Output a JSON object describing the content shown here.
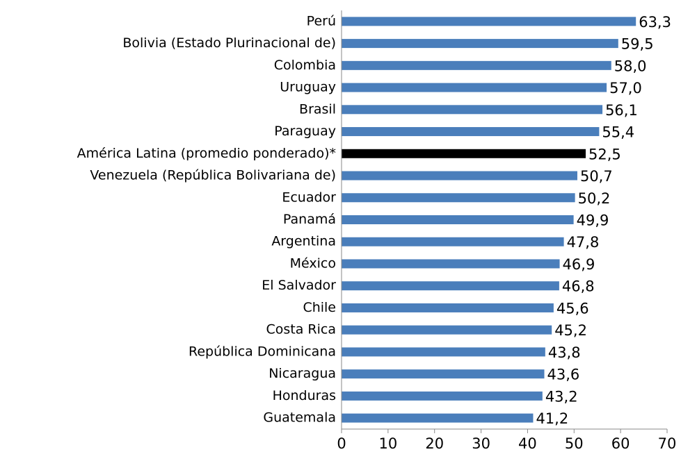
{
  "chart_data": {
    "type": "hbar",
    "categories": [
      "Perú",
      "Bolivia (Estado Plurinacional de)",
      "Colombia",
      "Uruguay",
      "Brasil",
      "Paraguay",
      "América Latina (promedio ponderado)*",
      "Venezuela (República Bolivariana de)",
      "Ecuador",
      "Panamá",
      "Argentina",
      "México",
      "El Salvador",
      "Chile",
      "Costa Rica",
      "República Dominicana",
      "Nicaragua",
      "Honduras",
      "Guatemala"
    ],
    "values": [
      63.3,
      59.5,
      58.0,
      57.0,
      56.1,
      55.4,
      52.5,
      50.7,
      50.2,
      49.9,
      47.8,
      46.9,
      46.8,
      45.6,
      45.2,
      43.8,
      43.6,
      43.2,
      41.2
    ],
    "value_labels": [
      "63,3",
      "59,5",
      "58,0",
      "57,0",
      "56,1",
      "55,4",
      "52,5",
      "50,7",
      "50,2",
      "49,9",
      "47,8",
      "46,9",
      "46,8",
      "45,6",
      "45,2",
      "43,8",
      "43,6",
      "43,2",
      "41,2"
    ],
    "colors": [
      "#4a7ebb",
      "#4a7ebb",
      "#4a7ebb",
      "#4a7ebb",
      "#4a7ebb",
      "#4a7ebb",
      "#000000",
      "#4a7ebb",
      "#4a7ebb",
      "#4a7ebb",
      "#4a7ebb",
      "#4a7ebb",
      "#4a7ebb",
      "#4a7ebb",
      "#4a7ebb",
      "#4a7ebb",
      "#4a7ebb",
      "#4a7ebb",
      "#4a7ebb"
    ],
    "xlim": [
      0,
      70
    ],
    "xticks": [
      0,
      10,
      20,
      30,
      40,
      50,
      60,
      70
    ]
  }
}
